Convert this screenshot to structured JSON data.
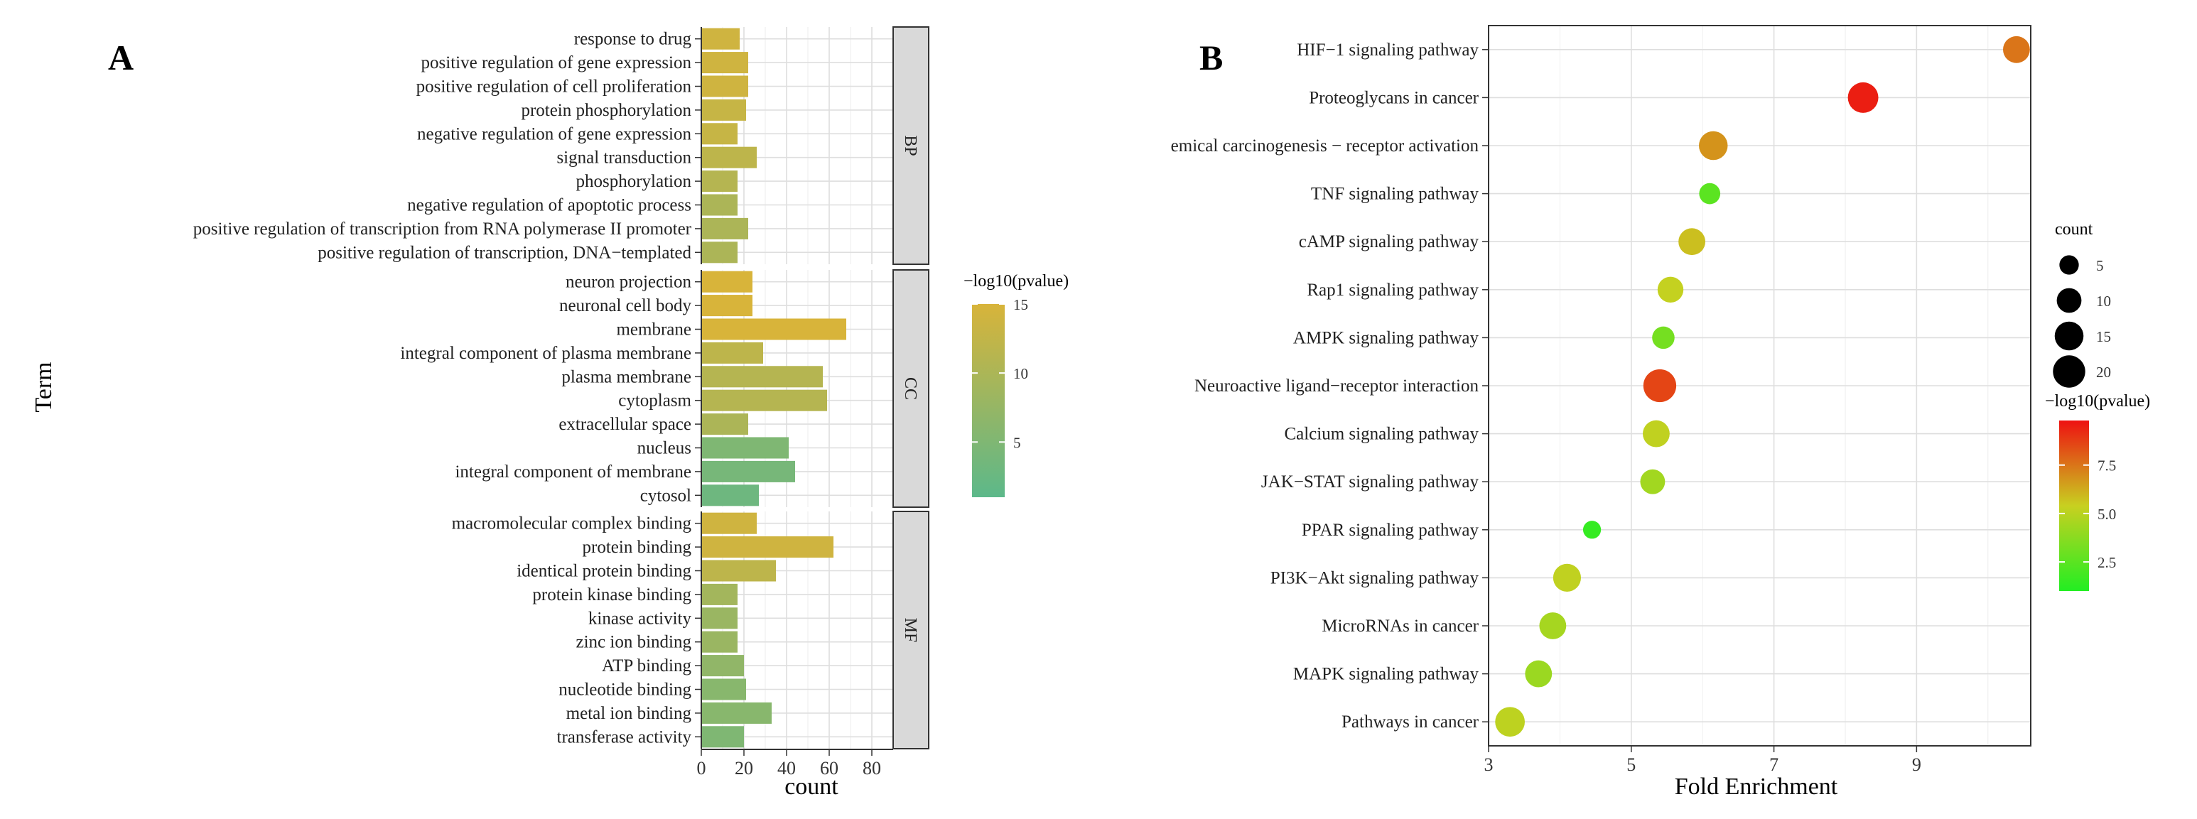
{
  "chart_data": [
    {
      "panel": "A",
      "type": "bar",
      "orientation": "horizontal",
      "xlabel": "count",
      "ylabel": "Term",
      "xlim": [
        0,
        90
      ],
      "x_ticks": [
        0,
        20,
        40,
        60,
        80
      ],
      "grid": true,
      "color_legend": {
        "title": "−log10(pvalue)",
        "range": [
          1,
          15
        ],
        "ticks": [
          5,
          10,
          15
        ],
        "low_color": "#5cb88a",
        "high_color": "#d8b43a"
      },
      "facets": [
        {
          "name": "BP",
          "terms": [
            "response to drug",
            "positive regulation of gene expression",
            "positive regulation of cell proliferation",
            "protein phosphorylation",
            "negative regulation of gene expression",
            "signal transduction",
            "phosphorylation",
            "negative regulation of apoptotic process",
            "positive regulation of transcription from RNA polymerase II promoter",
            "positive regulation of transcription, DNA−templated"
          ],
          "counts": [
            18,
            22,
            22,
            21,
            17,
            26,
            17,
            17,
            22,
            17
          ],
          "neg_log10_pvalue": [
            14,
            14,
            14,
            13,
            13,
            12,
            11,
            10,
            10,
            10
          ]
        },
        {
          "name": "CC",
          "terms": [
            "neuron projection",
            "neuronal cell body",
            "membrane",
            "integral component of plasma membrane",
            "plasma membrane",
            "cytoplasm",
            "extracellular space",
            "nucleus",
            "integral component of membrane",
            "cytosol"
          ],
          "counts": [
            24,
            24,
            68,
            29,
            57,
            59,
            22,
            41,
            44,
            27
          ],
          "neg_log10_pvalue": [
            15,
            15,
            15,
            12,
            11,
            11,
            10,
            5,
            4,
            3
          ]
        },
        {
          "name": "MF",
          "terms": [
            "macromolecular complex binding",
            "protein binding",
            "identical protein binding",
            "protein kinase binding",
            "kinase activity",
            "zinc ion binding",
            "ATP binding",
            "nucleotide binding",
            "metal ion binding",
            "transferase activity"
          ],
          "counts": [
            26,
            62,
            35,
            17,
            17,
            17,
            20,
            21,
            33,
            20
          ],
          "neg_log10_pvalue": [
            14,
            14,
            12,
            9,
            8,
            8,
            7,
            6,
            6,
            5
          ]
        }
      ]
    },
    {
      "panel": "B",
      "type": "scatter",
      "xlabel": "Fold Enrichment",
      "ylabel": "",
      "xlim": [
        3,
        10.6
      ],
      "x_ticks": [
        3,
        5,
        7,
        9
      ],
      "grid": true,
      "categories": [
        "HIF−1 signaling pathway",
        "Proteoglycans in cancer",
        "emical carcinogenesis − receptor activation",
        "TNF signaling pathway",
        "cAMP signaling pathway",
        "Rap1 signaling pathway",
        "AMPK signaling pathway",
        "Neuroactive ligand−receptor interaction",
        "Calcium signaling pathway",
        "JAK−STAT signaling pathway",
        "PPAR signaling pathway",
        "PI3K−Akt signaling pathway",
        "MicroRNAs in cancer",
        "MAPK signaling pathway",
        "Pathways in cancer"
      ],
      "fold_enrichment": [
        10.4,
        8.25,
        6.15,
        6.1,
        5.85,
        5.55,
        5.45,
        5.4,
        5.35,
        5.3,
        4.45,
        4.1,
        3.9,
        3.7,
        3.3
      ],
      "count": [
        10,
        14,
        12,
        5,
        10,
        9,
        6,
        17,
        10,
        8,
        3,
        11,
        10,
        10,
        13
      ],
      "neg_log10_pvalue": [
        7.5,
        9.5,
        6.8,
        2.5,
        5.8,
        5.3,
        3.2,
        8.6,
        5.2,
        4.4,
        1.5,
        5.2,
        4.5,
        4.2,
        5.1
      ],
      "size_legend": {
        "title": "count",
        "values": [
          5,
          10,
          15,
          20
        ]
      },
      "color_legend": {
        "title": "−log10(pvalue)",
        "range": [
          1,
          9.8
        ],
        "ticks": [
          2.5,
          5.0,
          7.5
        ],
        "tick_labels": [
          "2.5",
          "5.0",
          "7.5"
        ],
        "low_color": "#22ee22",
        "mid_color": "#c8d020",
        "high_color": "#ee1111"
      }
    }
  ],
  "panel_labels": {
    "a": "A",
    "b": "B"
  }
}
